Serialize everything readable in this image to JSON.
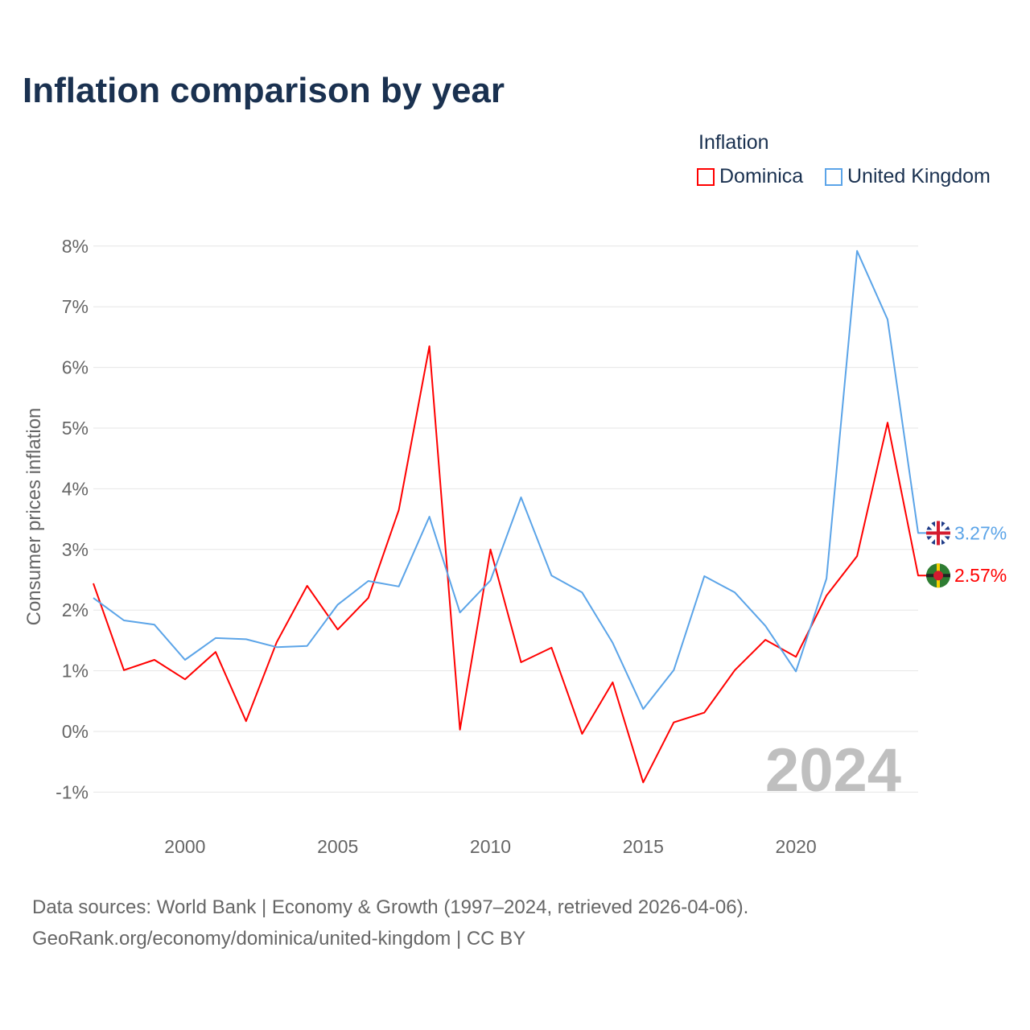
{
  "chart_data": {
    "type": "line",
    "title": "Inflation comparison by year",
    "ylabel": "Consumer prices inflation",
    "xlabel": "",
    "legend_title": "Inflation",
    "legend_position": "top-right",
    "ylim": [
      -1,
      8
    ],
    "yticks": [
      -1,
      0,
      1,
      2,
      3,
      4,
      5,
      6,
      7,
      8
    ],
    "ytick_labels": [
      "-1%",
      "0%",
      "1%",
      "2%",
      "3%",
      "4%",
      "5%",
      "6%",
      "7%",
      "8%"
    ],
    "xlim": [
      1997,
      2024
    ],
    "xticks": [
      2000,
      2005,
      2010,
      2015,
      2020
    ],
    "xtick_labels": [
      "2000",
      "2005",
      "2010",
      "2015",
      "2020"
    ],
    "grid": true,
    "watermark_year": "2024",
    "x": [
      1997,
      1998,
      1999,
      2000,
      2001,
      2002,
      2003,
      2004,
      2005,
      2006,
      2007,
      2008,
      2009,
      2010,
      2011,
      2012,
      2013,
      2014,
      2015,
      2016,
      2017,
      2018,
      2019,
      2020,
      2021,
      2022,
      2023,
      2024
    ],
    "series": [
      {
        "name": "Dominica",
        "color": "#ff0000",
        "end_label": "2.57%",
        "flag": "dominica-flag",
        "values": [
          2.44,
          1.01,
          1.18,
          0.86,
          1.31,
          0.17,
          1.47,
          2.4,
          1.68,
          2.2,
          3.65,
          6.35,
          0.03,
          3.0,
          1.14,
          1.38,
          -0.04,
          0.81,
          -0.84,
          0.15,
          0.31,
          1.01,
          1.51,
          1.23,
          2.24,
          2.89,
          5.09,
          2.57
        ]
      },
      {
        "name": "United Kingdom",
        "color": "#5ba4e8",
        "end_label": "3.27%",
        "flag": "uk-flag",
        "values": [
          2.2,
          1.83,
          1.76,
          1.18,
          1.54,
          1.52,
          1.39,
          1.41,
          2.09,
          2.48,
          2.39,
          3.54,
          1.96,
          2.49,
          3.86,
          2.57,
          2.29,
          1.46,
          0.37,
          1.01,
          2.56,
          2.29,
          1.74,
          0.99,
          2.52,
          7.92,
          6.79,
          3.27
        ]
      }
    ]
  },
  "footer": {
    "line1": "Data sources: World Bank | Economy & Growth (1997–2024, retrieved 2026-04-06).",
    "line2": "GeoRank.org/economy/dominica/united-kingdom | CC BY"
  }
}
